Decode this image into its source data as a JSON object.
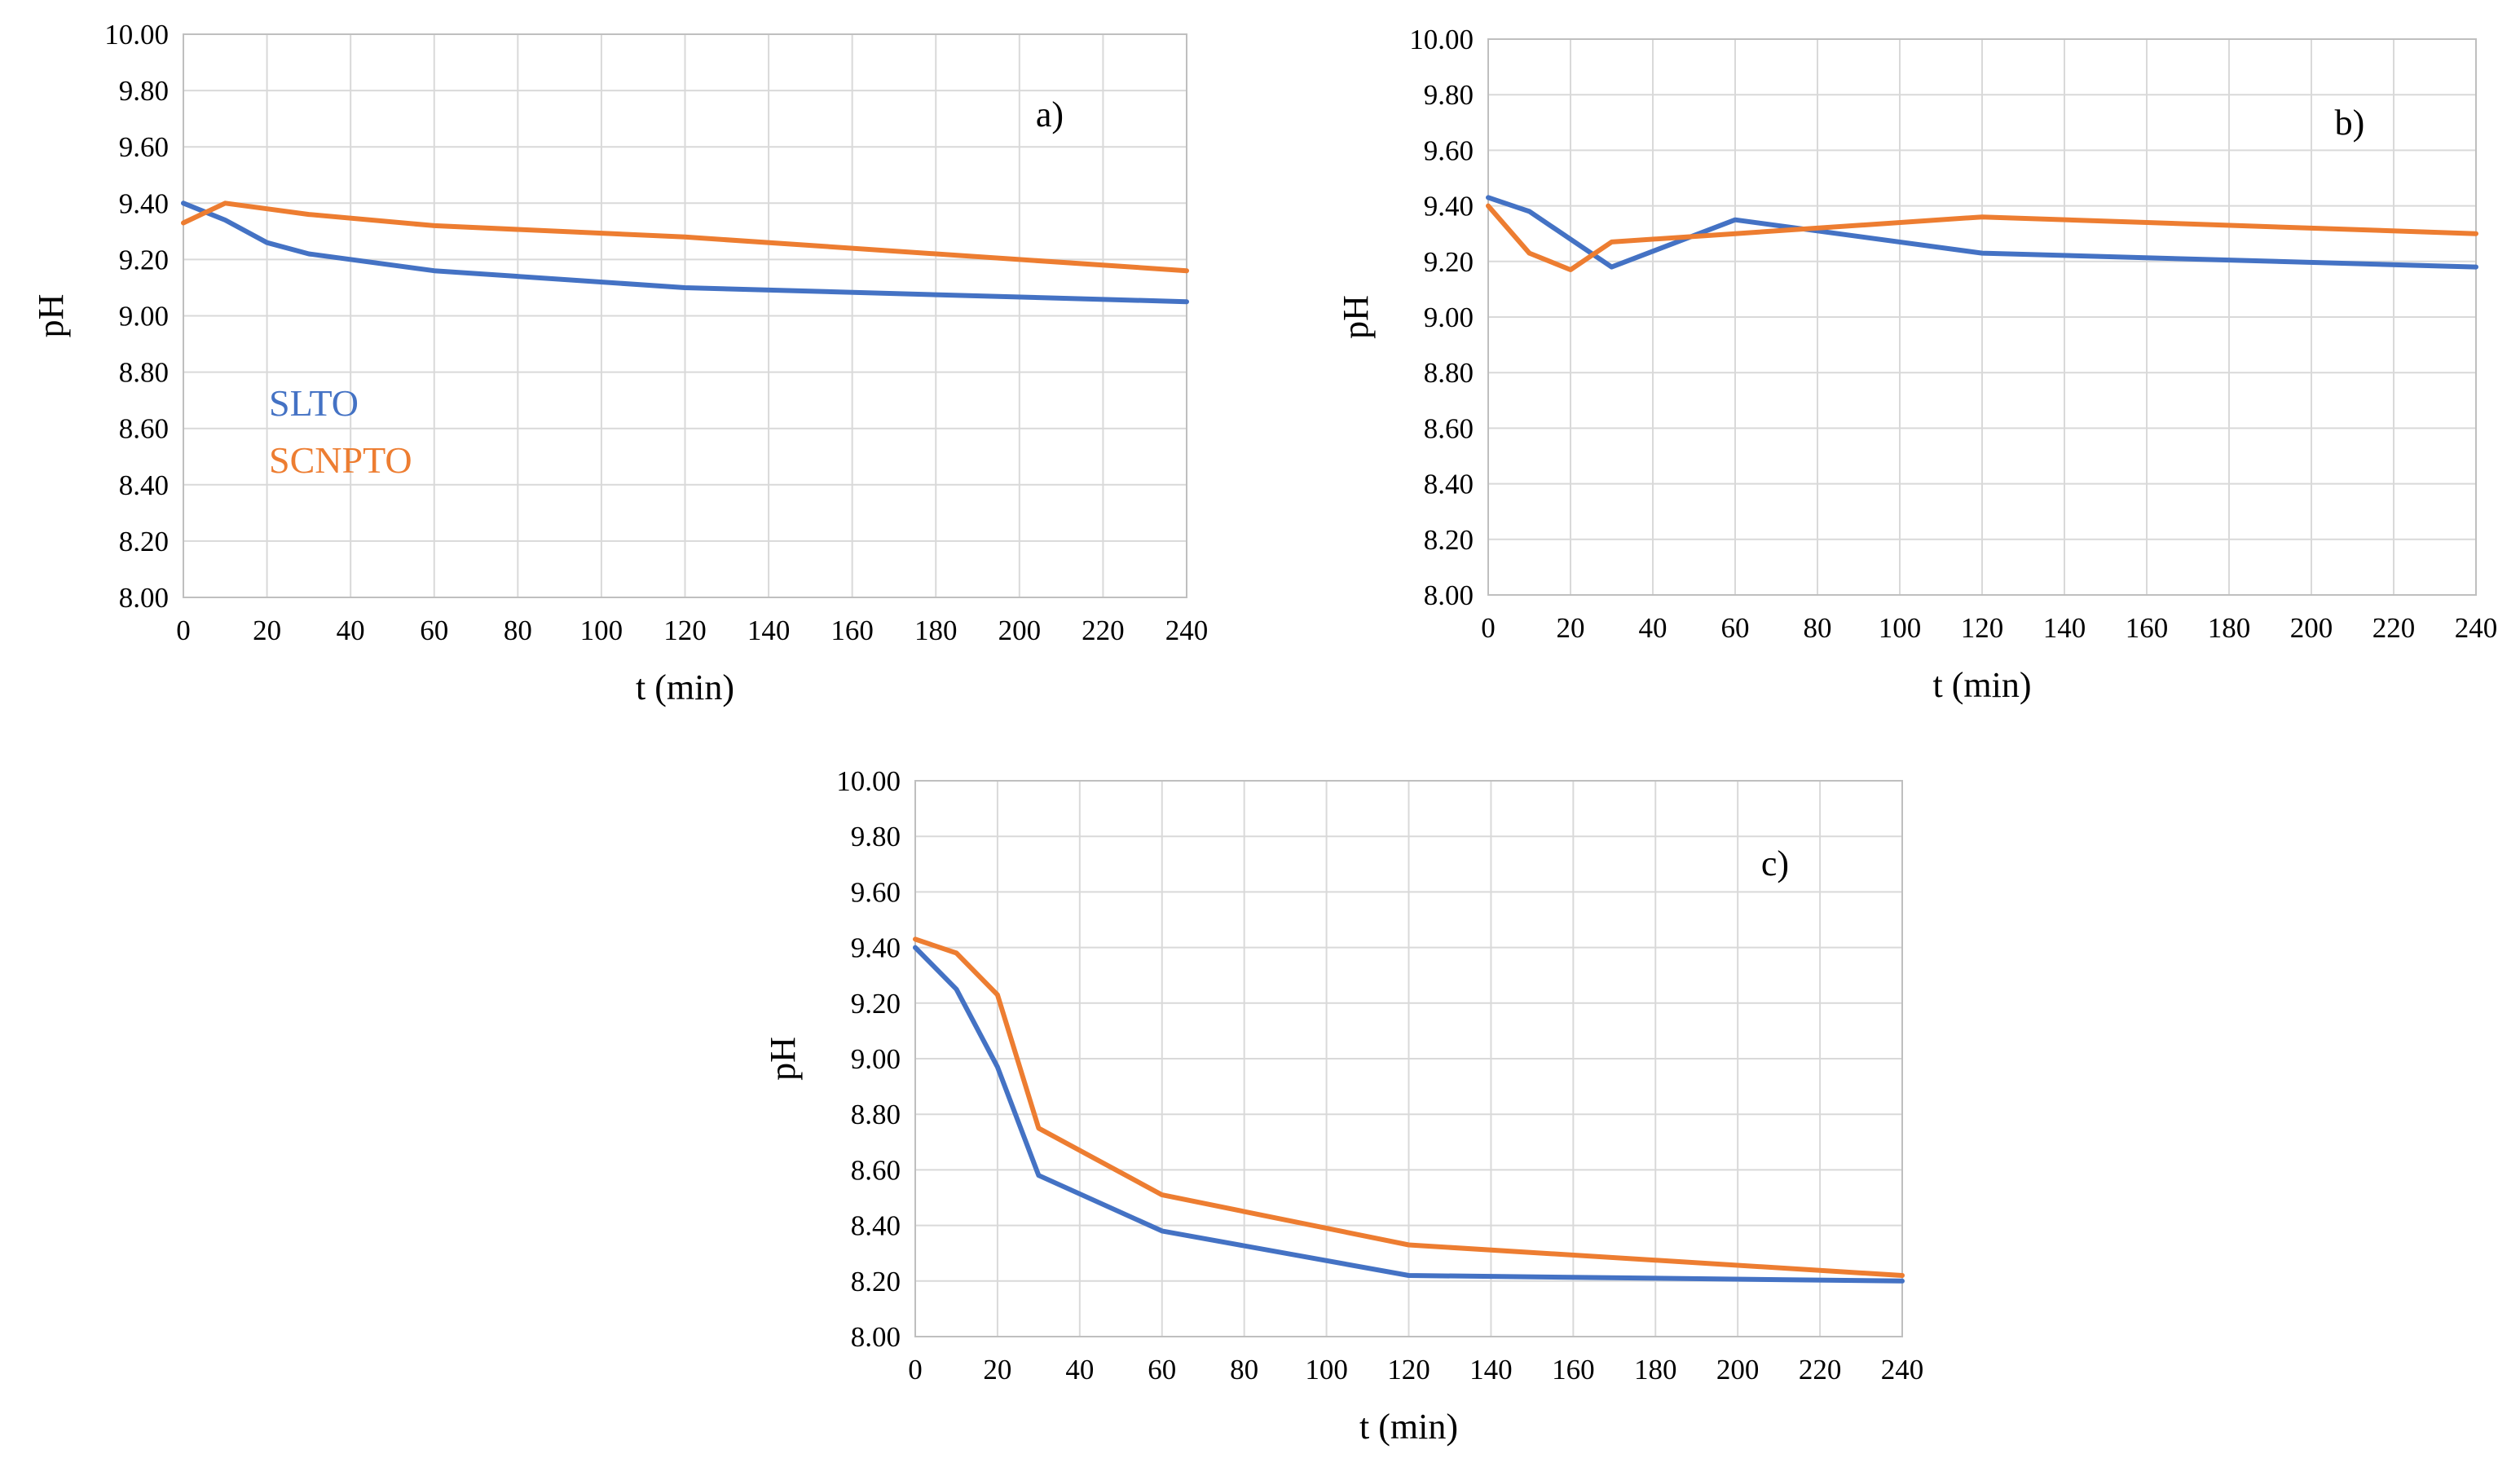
{
  "colors": {
    "SLTO": "#4472c4",
    "SCNPTO": "#ed7d31"
  },
  "chart_data": [
    {
      "id": "a",
      "type": "line",
      "panel_label": "a)",
      "xlabel": "t (min)",
      "ylabel": "pH",
      "xlim": [
        0,
        240
      ],
      "ylim": [
        8.0,
        10.0
      ],
      "xticks": [
        "0",
        "20",
        "40",
        "60",
        "80",
        "100",
        "120",
        "140",
        "160",
        "180",
        "200",
        "220",
        "240"
      ],
      "yticks": [
        "8.00",
        "8.20",
        "8.40",
        "8.60",
        "8.80",
        "9.00",
        "9.20",
        "9.40",
        "9.60",
        "9.80",
        "10.00"
      ],
      "legend": [
        "SLTO",
        "SCNPTO"
      ],
      "legend_position": "left-middle, inside plot",
      "series": [
        {
          "name": "SLTO",
          "x": [
            0,
            10,
            20,
            30,
            60,
            120,
            240
          ],
          "y": [
            9.4,
            9.34,
            9.26,
            9.22,
            9.16,
            9.1,
            9.05
          ]
        },
        {
          "name": "SCNPTO",
          "x": [
            0,
            10,
            20,
            30,
            60,
            120,
            240
          ],
          "y": [
            9.33,
            9.4,
            9.38,
            9.36,
            9.32,
            9.28,
            9.16
          ]
        }
      ]
    },
    {
      "id": "b",
      "type": "line",
      "panel_label": "b)",
      "xlabel": "t (min)",
      "ylabel": "pH",
      "xlim": [
        0,
        240
      ],
      "ylim": [
        8.0,
        10.0
      ],
      "xticks": [
        "0",
        "20",
        "40",
        "60",
        "80",
        "100",
        "120",
        "140",
        "160",
        "180",
        "200",
        "220",
        "240"
      ],
      "yticks": [
        "8.00",
        "8.20",
        "8.40",
        "8.60",
        "8.80",
        "9.00",
        "9.20",
        "9.40",
        "9.60",
        "9.80",
        "10.00"
      ],
      "series": [
        {
          "name": "SLTO",
          "x": [
            0,
            10,
            20,
            30,
            60,
            120,
            240
          ],
          "y": [
            9.43,
            9.38,
            9.28,
            9.18,
            9.35,
            9.23,
            9.18
          ]
        },
        {
          "name": "SCNPTO",
          "x": [
            0,
            10,
            20,
            30,
            60,
            120,
            240
          ],
          "y": [
            9.4,
            9.23,
            9.17,
            9.27,
            9.3,
            9.36,
            9.3
          ]
        }
      ]
    },
    {
      "id": "c",
      "type": "line",
      "panel_label": "c)",
      "xlabel": "t (min)",
      "ylabel": "pH",
      "xlim": [
        0,
        240
      ],
      "ylim": [
        8.0,
        10.0
      ],
      "xticks": [
        "0",
        "20",
        "40",
        "60",
        "80",
        "100",
        "120",
        "140",
        "160",
        "180",
        "200",
        "220",
        "240"
      ],
      "yticks": [
        "8.00",
        "8.20",
        "8.40",
        "8.60",
        "8.80",
        "9.00",
        "9.20",
        "9.40",
        "9.60",
        "9.80",
        "10.00"
      ],
      "series": [
        {
          "name": "SLTO",
          "x": [
            0,
            10,
            20,
            30,
            60,
            120,
            240
          ],
          "y": [
            9.4,
            9.25,
            8.97,
            8.58,
            8.38,
            8.22,
            8.2
          ]
        },
        {
          "name": "SCNPTO",
          "x": [
            0,
            10,
            20,
            30,
            60,
            120,
            240
          ],
          "y": [
            9.43,
            9.38,
            9.23,
            8.75,
            8.51,
            8.33,
            8.22
          ]
        }
      ]
    }
  ]
}
